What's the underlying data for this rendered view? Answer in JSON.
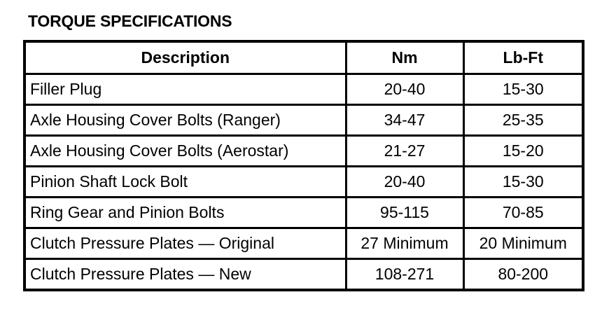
{
  "title": "TORQUE SPECIFICATIONS",
  "headers": [
    "Description",
    "Nm",
    "Lb-Ft"
  ],
  "rows": [
    [
      "Filler Plug",
      "20-40",
      "15-30"
    ],
    [
      "Axle Housing Cover Bolts (Ranger)",
      "34-47",
      "25-35"
    ],
    [
      "Axle Housing Cover Bolts (Aerostar)",
      "21-27",
      "15-20"
    ],
    [
      "Pinion Shaft Lock Bolt",
      "20-40",
      "15-30"
    ],
    [
      "Ring Gear and Pinion Bolts",
      "95-115",
      "70-85"
    ],
    [
      "Clutch Pressure Plates — Original",
      "27 Minimum",
      "20 Minimum"
    ],
    [
      "Clutch Pressure Plates — New",
      "108-271",
      "80-200"
    ]
  ]
}
